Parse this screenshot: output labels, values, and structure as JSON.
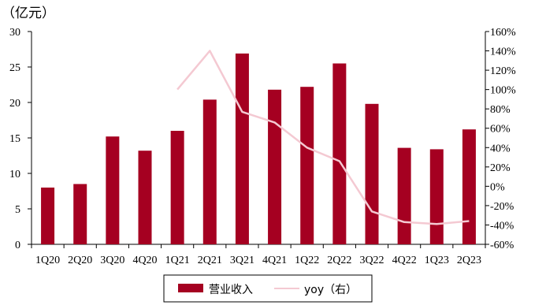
{
  "chart_data": {
    "type": "bar",
    "unit_label": "（亿元）",
    "categories": [
      "1Q20",
      "2Q20",
      "3Q20",
      "4Q20",
      "1Q21",
      "2Q21",
      "3Q21",
      "4Q21",
      "1Q22",
      "2Q22",
      "3Q22",
      "4Q22",
      "1Q23",
      "2Q23"
    ],
    "series": [
      {
        "name": "营业收入",
        "type": "bar",
        "axis": "left",
        "color": "#a50021",
        "values": [
          8.0,
          8.5,
          15.2,
          13.2,
          16.0,
          20.4,
          26.9,
          21.8,
          22.2,
          25.5,
          19.8,
          13.6,
          13.4,
          16.2
        ]
      },
      {
        "name": "yoy（右）",
        "type": "line",
        "axis": "right",
        "color": "#f4c9d2",
        "values": [
          null,
          null,
          null,
          null,
          100,
          140,
          77,
          66,
          40,
          26,
          -26,
          -37,
          -39,
          -36
        ]
      }
    ],
    "left_axis": {
      "min": 0,
      "max": 30,
      "ticks": [
        "0",
        "5",
        "10",
        "15",
        "20",
        "25",
        "30"
      ]
    },
    "right_axis": {
      "min": -60,
      "max": 160,
      "ticks": [
        "-60%",
        "-40%",
        "-20%",
        "0%",
        "20%",
        "40%",
        "60%",
        "80%",
        "100%",
        "120%",
        "140%",
        "160%"
      ]
    },
    "legend": {
      "placement": "bottom"
    },
    "grid": false
  }
}
